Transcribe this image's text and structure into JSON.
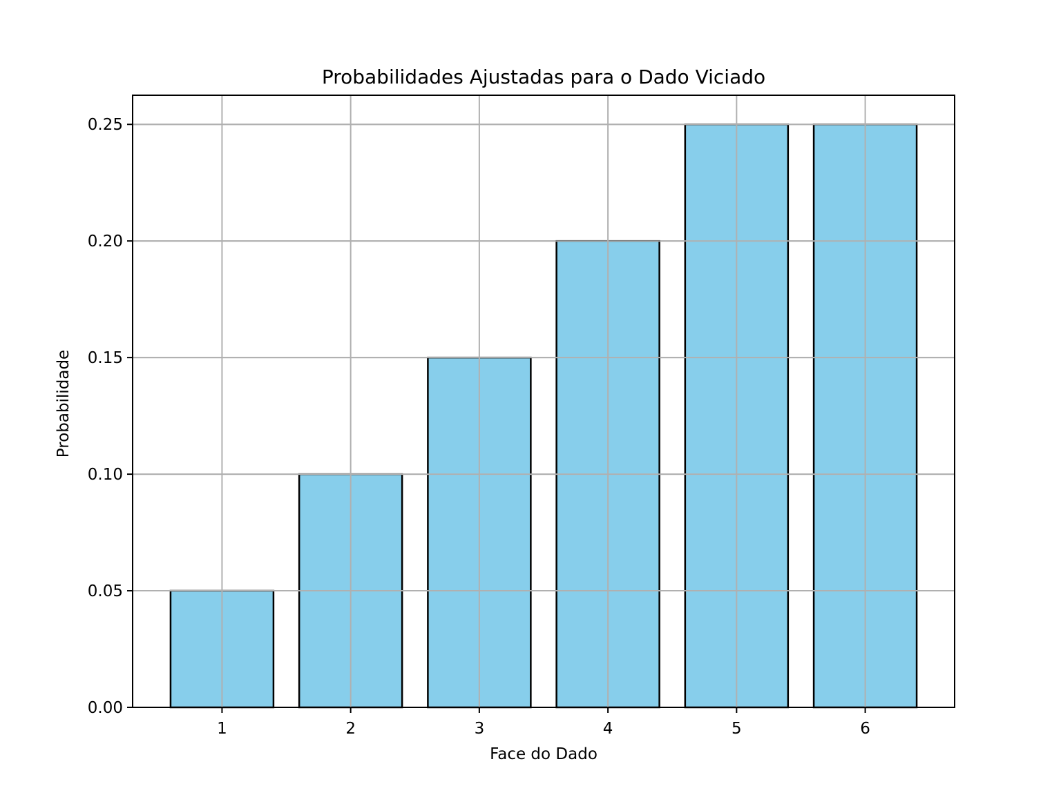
{
  "chart_data": {
    "type": "bar",
    "title": "Probabilidades Ajustadas para o Dado Viciado",
    "xlabel": "Face do Dado",
    "ylabel": "Probabilidade",
    "categories": [
      "1",
      "2",
      "3",
      "4",
      "5",
      "6"
    ],
    "values": [
      0.05,
      0.1,
      0.15,
      0.2,
      0.25,
      0.25
    ],
    "ylim": [
      0,
      0.2625
    ],
    "yticks": [
      "0.00",
      "0.05",
      "0.10",
      "0.15",
      "0.20",
      "0.25"
    ],
    "grid": true,
    "legend": "none",
    "bar_color": "#87ceeb",
    "edge_color": "#000000"
  }
}
